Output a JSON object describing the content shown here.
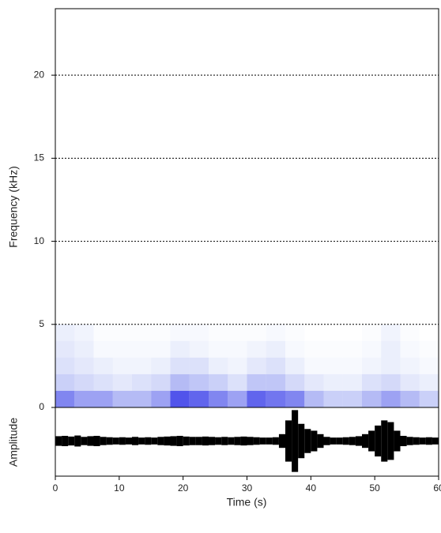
{
  "chart_data": [
    {
      "type": "spectrogram",
      "ylabel": "Frequency (kHz)",
      "ylim": [
        0,
        24
      ],
      "yticks": [
        0,
        5,
        10,
        15,
        20
      ],
      "grid": true,
      "colors": [
        "#bcd3f2",
        "#1a1ae6"
      ],
      "time_bins": [
        0,
        3,
        6,
        9,
        12,
        15,
        18,
        21,
        24,
        27,
        30,
        33,
        36,
        39,
        42,
        45,
        48,
        51,
        54,
        57,
        60
      ],
      "freq_bins": [
        0,
        1,
        2,
        3,
        4,
        5
      ],
      "intensity": [
        [
          0.7,
          0.6,
          0.6,
          0.5,
          0.5,
          0.6,
          0.85,
          0.8,
          0.7,
          0.6,
          0.8,
          0.75,
          0.7,
          0.5,
          0.4,
          0.4,
          0.5,
          0.6,
          0.5,
          0.4
        ],
        [
          0.4,
          0.35,
          0.3,
          0.25,
          0.3,
          0.35,
          0.5,
          0.45,
          0.4,
          0.3,
          0.45,
          0.45,
          0.35,
          0.25,
          0.2,
          0.2,
          0.3,
          0.35,
          0.25,
          0.2
        ],
        [
          0.3,
          0.25,
          0.2,
          0.15,
          0.15,
          0.2,
          0.3,
          0.3,
          0.2,
          0.15,
          0.25,
          0.3,
          0.2,
          0.1,
          0.1,
          0.1,
          0.15,
          0.2,
          0.15,
          0.1
        ],
        [
          0.25,
          0.2,
          0.1,
          0.1,
          0.1,
          0.1,
          0.2,
          0.15,
          0.1,
          0.1,
          0.15,
          0.2,
          0.1,
          0.05,
          0.05,
          0.05,
          0.1,
          0.2,
          0.1,
          0.05
        ],
        [
          0.2,
          0.15,
          0.05,
          0.05,
          0.05,
          0.05,
          0.1,
          0.1,
          0.05,
          0.05,
          0.05,
          0.1,
          0.05,
          0,
          0,
          0,
          0.05,
          0.15,
          0.05,
          0
        ]
      ]
    },
    {
      "type": "waveform",
      "ylabel": "Amplitude",
      "xlabel": "Time (s)",
      "color": "#000000",
      "xlim": [
        0,
        60
      ],
      "xticks": [
        0,
        10,
        20,
        30,
        40,
        50,
        60
      ],
      "ylim": [
        -1,
        1
      ],
      "x": [
        0,
        1,
        2,
        3,
        4,
        5,
        6,
        7,
        8,
        9,
        10,
        11,
        12,
        13,
        14,
        15,
        16,
        17,
        18,
        19,
        20,
        21,
        22,
        23,
        24,
        25,
        26,
        27,
        28,
        29,
        30,
        31,
        32,
        33,
        34,
        35,
        36,
        37,
        38,
        39,
        40,
        41,
        42,
        43,
        44,
        45,
        46,
        47,
        48,
        49,
        50,
        51,
        52,
        53,
        54,
        55,
        56,
        57,
        58,
        59
      ],
      "values": [
        0.14,
        0.15,
        0.13,
        0.16,
        0.12,
        0.14,
        0.15,
        0.12,
        0.11,
        0.1,
        0.11,
        0.1,
        0.12,
        0.1,
        0.11,
        0.1,
        0.12,
        0.13,
        0.14,
        0.15,
        0.13,
        0.12,
        0.12,
        0.13,
        0.12,
        0.11,
        0.12,
        0.11,
        0.12,
        0.13,
        0.12,
        0.11,
        0.1,
        0.1,
        0.11,
        0.2,
        0.6,
        0.9,
        0.5,
        0.35,
        0.3,
        0.2,
        0.12,
        0.1,
        0.1,
        0.11,
        0.12,
        0.14,
        0.2,
        0.3,
        0.45,
        0.6,
        0.55,
        0.3,
        0.15,
        0.12,
        0.11,
        0.1,
        0.11,
        0.1
      ]
    }
  ]
}
